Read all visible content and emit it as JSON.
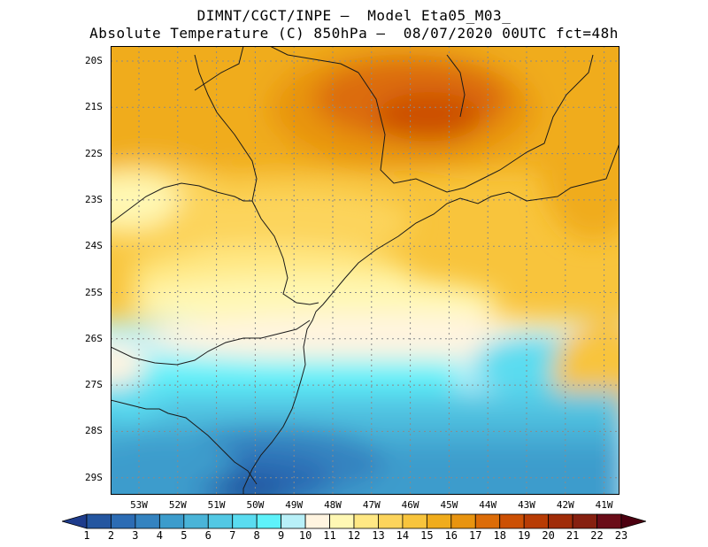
{
  "title": {
    "line1": "DIMNT/CGCT/INPE –  Model Eta05_M03_",
    "line2": "Absolute Temperature (C) 850hPa –  08/07/2020 00UTC fct=48h"
  },
  "map": {
    "lat_labels": [
      "20S",
      "21S",
      "22S",
      "23S",
      "24S",
      "25S",
      "26S",
      "27S",
      "28S",
      "29S"
    ],
    "lon_labels": [
      "53W",
      "52W",
      "51W",
      "50W",
      "49W",
      "48W",
      "47W",
      "46W",
      "45W",
      "44W",
      "43W",
      "42W",
      "41W"
    ]
  },
  "colorbar": {
    "labels": [
      "1",
      "2",
      "3",
      "4",
      "5",
      "6",
      "7",
      "8",
      "9",
      "10",
      "11",
      "12",
      "13",
      "14",
      "15",
      "16",
      "17",
      "18",
      "19",
      "20",
      "21",
      "22",
      "23"
    ],
    "colors": [
      "#1e3c8c",
      "#2456a0",
      "#2c6cb4",
      "#3483c0",
      "#3c9ccc",
      "#4ab4d8",
      "#52c8e4",
      "#5adcf0",
      "#5ef2fa",
      "#b8f0f8",
      "#fff4e0",
      "#fff8b4",
      "#ffe884",
      "#fcd45c",
      "#f8c43c",
      "#f0ac1c",
      "#e89410",
      "#dc6c08",
      "#cc5004",
      "#b83c04",
      "#a02c08",
      "#862010",
      "#6a0c18",
      "#4c0010"
    ]
  },
  "colors": {
    "land_border": "#1a1a1a",
    "grid": "#8a8a8a"
  }
}
